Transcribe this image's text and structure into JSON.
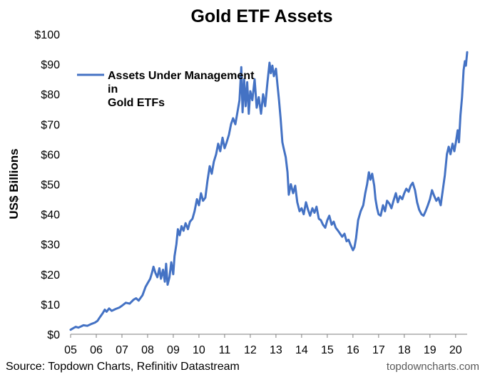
{
  "chart_data": {
    "type": "line",
    "title": "Gold ETF Assets",
    "ylabel": "US$ Billions",
    "xlabel": "",
    "ylim": [
      0,
      100
    ],
    "xlim": [
      2005.0,
      2020.45
    ],
    "y_ticks": [
      0,
      10,
      20,
      30,
      40,
      50,
      60,
      70,
      80,
      90,
      100
    ],
    "y_tick_labels": [
      "$0",
      "$10",
      "$20",
      "$30",
      "$40",
      "$50",
      "$60",
      "$70",
      "$80",
      "$90",
      "$100"
    ],
    "x_ticks": [
      2005,
      2006,
      2007,
      2008,
      2009,
      2010,
      2011,
      2012,
      2013,
      2014,
      2015,
      2016,
      2017,
      2018,
      2019,
      2020
    ],
    "x_tick_labels": [
      "05",
      "06",
      "07",
      "08",
      "09",
      "10",
      "11",
      "12",
      "13",
      "14",
      "15",
      "16",
      "17",
      "18",
      "19",
      "20"
    ],
    "grid": false,
    "legend": "top-left",
    "series": [
      {
        "name": "Assets Under Management in Gold ETFs",
        "color": "#4472c4",
        "points": [
          [
            2005.0,
            1.5
          ],
          [
            2005.1,
            2.0
          ],
          [
            2005.2,
            2.5
          ],
          [
            2005.3,
            2.2
          ],
          [
            2005.4,
            2.6
          ],
          [
            2005.5,
            3.0
          ],
          [
            2005.65,
            2.8
          ],
          [
            2005.8,
            3.4
          ],
          [
            2005.95,
            3.9
          ],
          [
            2006.05,
            4.5
          ],
          [
            2006.15,
            5.8
          ],
          [
            2006.25,
            7.0
          ],
          [
            2006.33,
            8.2
          ],
          [
            2006.4,
            7.5
          ],
          [
            2006.5,
            8.6
          ],
          [
            2006.6,
            7.8
          ],
          [
            2006.75,
            8.4
          ],
          [
            2006.9,
            8.9
          ],
          [
            2007.0,
            9.5
          ],
          [
            2007.15,
            10.5
          ],
          [
            2007.3,
            10.2
          ],
          [
            2007.45,
            11.5
          ],
          [
            2007.55,
            12.0
          ],
          [
            2007.65,
            11.2
          ],
          [
            2007.8,
            13.0
          ],
          [
            2007.92,
            15.8
          ],
          [
            2008.0,
            17.0
          ],
          [
            2008.1,
            18.5
          ],
          [
            2008.17,
            20.5
          ],
          [
            2008.23,
            22.5
          ],
          [
            2008.3,
            20.5
          ],
          [
            2008.38,
            19.0
          ],
          [
            2008.46,
            22.0
          ],
          [
            2008.52,
            18.5
          ],
          [
            2008.6,
            21.5
          ],
          [
            2008.67,
            17.5
          ],
          [
            2008.72,
            23.5
          ],
          [
            2008.78,
            16.5
          ],
          [
            2008.85,
            19.0
          ],
          [
            2008.92,
            24.0
          ],
          [
            2009.0,
            20.0
          ],
          [
            2009.05,
            26.0
          ],
          [
            2009.12,
            30.0
          ],
          [
            2009.18,
            35.0
          ],
          [
            2009.25,
            33.0
          ],
          [
            2009.32,
            36.0
          ],
          [
            2009.4,
            34.5
          ],
          [
            2009.48,
            37.0
          ],
          [
            2009.57,
            35.0
          ],
          [
            2009.65,
            37.5
          ],
          [
            2009.75,
            38.5
          ],
          [
            2009.83,
            41.0
          ],
          [
            2009.92,
            45.0
          ],
          [
            2010.0,
            43.0
          ],
          [
            2010.08,
            47.0
          ],
          [
            2010.16,
            44.5
          ],
          [
            2010.25,
            45.5
          ],
          [
            2010.33,
            51.0
          ],
          [
            2010.42,
            56.0
          ],
          [
            2010.5,
            53.5
          ],
          [
            2010.58,
            57.5
          ],
          [
            2010.67,
            60.0
          ],
          [
            2010.75,
            63.5
          ],
          [
            2010.83,
            61.0
          ],
          [
            2010.92,
            65.5
          ],
          [
            2011.0,
            62.0
          ],
          [
            2011.08,
            64.0
          ],
          [
            2011.17,
            66.5
          ],
          [
            2011.25,
            70.0
          ],
          [
            2011.33,
            72.0
          ],
          [
            2011.42,
            70.0
          ],
          [
            2011.5,
            74.0
          ],
          [
            2011.58,
            78.0
          ],
          [
            2011.65,
            89.0
          ],
          [
            2011.7,
            74.0
          ],
          [
            2011.76,
            85.0
          ],
          [
            2011.82,
            76.0
          ],
          [
            2011.88,
            84.0
          ],
          [
            2011.94,
            73.5
          ],
          [
            2012.0,
            81.0
          ],
          [
            2012.08,
            78.0
          ],
          [
            2012.17,
            85.0
          ],
          [
            2012.25,
            75.5
          ],
          [
            2012.33,
            79.0
          ],
          [
            2012.42,
            73.5
          ],
          [
            2012.5,
            80.0
          ],
          [
            2012.58,
            76.0
          ],
          [
            2012.67,
            84.0
          ],
          [
            2012.75,
            90.5
          ],
          [
            2012.8,
            87.0
          ],
          [
            2012.86,
            89.5
          ],
          [
            2012.92,
            86.0
          ],
          [
            2013.0,
            88.5
          ],
          [
            2013.06,
            83.0
          ],
          [
            2013.12,
            78.0
          ],
          [
            2013.18,
            72.0
          ],
          [
            2013.25,
            64.0
          ],
          [
            2013.3,
            62.0
          ],
          [
            2013.38,
            59.0
          ],
          [
            2013.45,
            54.0
          ],
          [
            2013.5,
            46.5
          ],
          [
            2013.58,
            50.0
          ],
          [
            2013.67,
            47.0
          ],
          [
            2013.75,
            49.5
          ],
          [
            2013.83,
            44.0
          ],
          [
            2013.92,
            41.0
          ],
          [
            2014.0,
            42.0
          ],
          [
            2014.08,
            40.0
          ],
          [
            2014.17,
            44.0
          ],
          [
            2014.25,
            41.5
          ],
          [
            2014.33,
            39.5
          ],
          [
            2014.42,
            42.0
          ],
          [
            2014.5,
            40.5
          ],
          [
            2014.58,
            42.5
          ],
          [
            2014.67,
            38.5
          ],
          [
            2014.75,
            38.0
          ],
          [
            2014.83,
            36.5
          ],
          [
            2014.92,
            35.5
          ],
          [
            2015.0,
            38.0
          ],
          [
            2015.08,
            39.5
          ],
          [
            2015.17,
            36.5
          ],
          [
            2015.25,
            37.5
          ],
          [
            2015.33,
            35.5
          ],
          [
            2015.42,
            34.5
          ],
          [
            2015.5,
            33.5
          ],
          [
            2015.58,
            32.5
          ],
          [
            2015.67,
            33.5
          ],
          [
            2015.75,
            31.0
          ],
          [
            2015.83,
            31.5
          ],
          [
            2015.92,
            29.5
          ],
          [
            2016.0,
            28.0
          ],
          [
            2016.06,
            29.0
          ],
          [
            2016.12,
            32.0
          ],
          [
            2016.2,
            38.0
          ],
          [
            2016.3,
            41.0
          ],
          [
            2016.4,
            43.0
          ],
          [
            2016.48,
            47.0
          ],
          [
            2016.55,
            50.0
          ],
          [
            2016.62,
            54.0
          ],
          [
            2016.68,
            51.5
          ],
          [
            2016.75,
            53.5
          ],
          [
            2016.83,
            49.5
          ],
          [
            2016.88,
            45.0
          ],
          [
            2016.94,
            42.0
          ],
          [
            2017.0,
            40.0
          ],
          [
            2017.08,
            39.5
          ],
          [
            2017.17,
            43.0
          ],
          [
            2017.25,
            41.0
          ],
          [
            2017.33,
            44.5
          ],
          [
            2017.42,
            43.5
          ],
          [
            2017.5,
            42.0
          ],
          [
            2017.58,
            44.5
          ],
          [
            2017.67,
            47.0
          ],
          [
            2017.75,
            44.0
          ],
          [
            2017.83,
            46.0
          ],
          [
            2017.92,
            45.0
          ],
          [
            2018.0,
            47.0
          ],
          [
            2018.08,
            48.5
          ],
          [
            2018.17,
            47.5
          ],
          [
            2018.25,
            49.5
          ],
          [
            2018.33,
            50.5
          ],
          [
            2018.42,
            48.0
          ],
          [
            2018.5,
            44.0
          ],
          [
            2018.58,
            41.5
          ],
          [
            2018.67,
            40.0
          ],
          [
            2018.75,
            39.5
          ],
          [
            2018.83,
            41.0
          ],
          [
            2018.92,
            43.0
          ],
          [
            2019.0,
            45.0
          ],
          [
            2019.08,
            48.0
          ],
          [
            2019.17,
            46.0
          ],
          [
            2019.25,
            44.5
          ],
          [
            2019.33,
            45.5
          ],
          [
            2019.42,
            43.0
          ],
          [
            2019.5,
            48.0
          ],
          [
            2019.58,
            53.0
          ],
          [
            2019.66,
            60.0
          ],
          [
            2019.73,
            62.5
          ],
          [
            2019.8,
            60.0
          ],
          [
            2019.88,
            63.5
          ],
          [
            2019.95,
            61.0
          ],
          [
            2020.02,
            64.5
          ],
          [
            2020.08,
            68.0
          ],
          [
            2020.13,
            64.0
          ],
          [
            2020.19,
            73.0
          ],
          [
            2020.25,
            79.0
          ],
          [
            2020.31,
            88.0
          ],
          [
            2020.36,
            91.0
          ],
          [
            2020.4,
            89.5
          ],
          [
            2020.45,
            94.0
          ]
        ]
      }
    ]
  },
  "footer": {
    "source_text": "Source: Topdown Charts, Refinitiv Datastream",
    "brand_text": "topdowncharts.com"
  }
}
